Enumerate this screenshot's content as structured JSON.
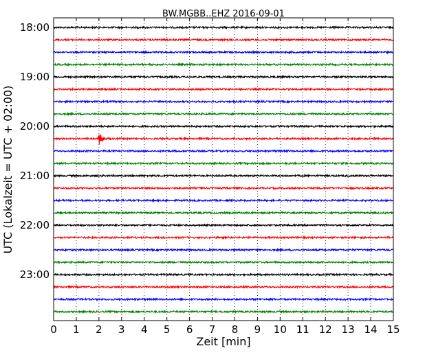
{
  "chart_data": {
    "type": "line",
    "title": "BW.MGBB..EHZ 2016-09-01",
    "xlabel": "Zeit  [min]",
    "ylabel": "UTC (Lokalzeit = UTC + 02:00)",
    "xlim": [
      0,
      15
    ],
    "x_ticks": [
      0,
      1,
      2,
      3,
      4,
      5,
      6,
      7,
      8,
      9,
      10,
      11,
      12,
      13,
      14,
      15
    ],
    "x_tick_labels": [
      "0",
      "1",
      "2",
      "3",
      "4",
      "5",
      "6",
      "7",
      "8",
      "9",
      "10",
      "11",
      "12",
      "13",
      "14",
      "15"
    ],
    "y_tick_labels": [
      "18:00",
      "19:00",
      "20:00",
      "21:00",
      "22:00",
      "23:00"
    ],
    "grid": {
      "vertical": true,
      "style": "dotted"
    },
    "legend": "none",
    "colors": [
      "#000000",
      "#ff0000",
      "#0000ff",
      "#008000"
    ],
    "traces": [
      {
        "start": "18:00",
        "color": "#000000"
      },
      {
        "start": "18:15",
        "color": "#ff0000"
      },
      {
        "start": "18:30",
        "color": "#0000ff"
      },
      {
        "start": "18:45",
        "color": "#008000"
      },
      {
        "start": "19:00",
        "color": "#000000"
      },
      {
        "start": "19:15",
        "color": "#ff0000"
      },
      {
        "start": "19:30",
        "color": "#0000ff"
      },
      {
        "start": "19:45",
        "color": "#008000"
      },
      {
        "start": "20:00",
        "color": "#000000"
      },
      {
        "start": "20:15",
        "color": "#ff0000",
        "event_min": 2.0
      },
      {
        "start": "20:30",
        "color": "#0000ff"
      },
      {
        "start": "20:45",
        "color": "#008000"
      },
      {
        "start": "21:00",
        "color": "#000000"
      },
      {
        "start": "21:15",
        "color": "#ff0000"
      },
      {
        "start": "21:30",
        "color": "#0000ff"
      },
      {
        "start": "21:45",
        "color": "#008000"
      },
      {
        "start": "22:00",
        "color": "#000000"
      },
      {
        "start": "22:15",
        "color": "#ff0000"
      },
      {
        "start": "22:30",
        "color": "#0000ff"
      },
      {
        "start": "22:45",
        "color": "#008000"
      },
      {
        "start": "23:00",
        "color": "#000000"
      },
      {
        "start": "23:15",
        "color": "#ff0000"
      },
      {
        "start": "23:30",
        "color": "#0000ff"
      },
      {
        "start": "23:45",
        "color": "#008000"
      }
    ]
  }
}
